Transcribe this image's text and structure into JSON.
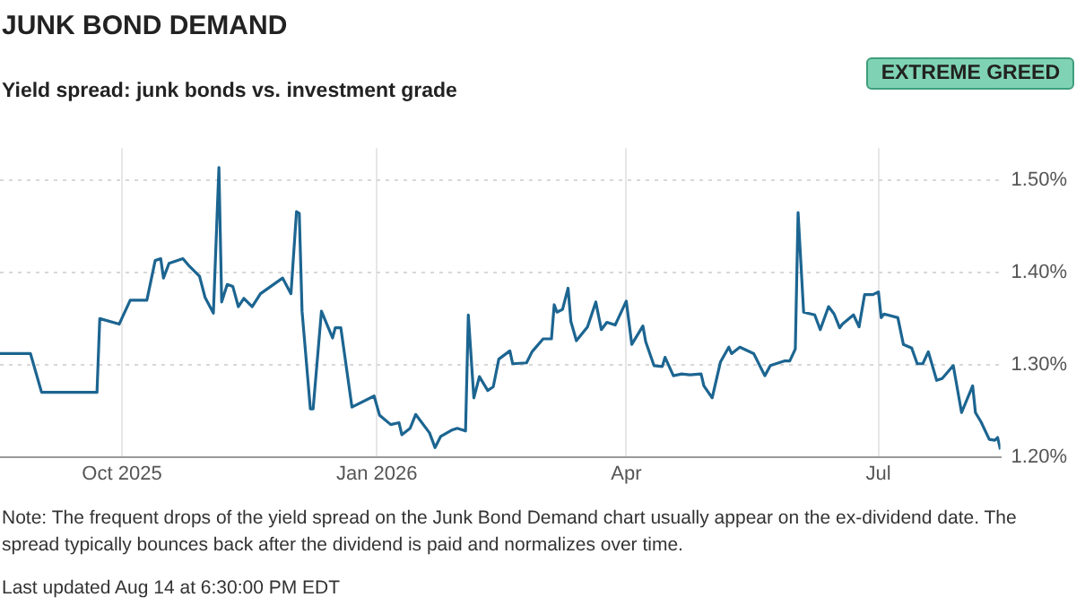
{
  "chart_data": {
    "type": "line",
    "title": "JUNK BOND DEMAND",
    "subtitle": "Yield spread: junk bonds vs. investment grade",
    "annotations": [
      "EXTREME GREED",
      "Note: The frequent drops of the yield spread on the Junk Bond Demand chart usually appear on the ex-dividend date. The spread typically bounces back after the dividend is paid and normalizes over time.",
      "Last updated Aug 14 at 6:30:00 PM EDT"
    ],
    "x": [
      "2025-08-18",
      "2025-08-29",
      "2025-09-02",
      "2025-09-22",
      "2025-09-23",
      "2025-09-30",
      "2025-10-04",
      "2025-10-10",
      "2025-10-13",
      "2025-10-15",
      "2025-10-16",
      "2025-10-18",
      "2025-10-23",
      "2025-10-25",
      "2025-10-29",
      "2025-10-31",
      "2025-11-03",
      "2025-11-05",
      "2025-11-06",
      "2025-11-08",
      "2025-11-10",
      "2025-11-12",
      "2025-11-14",
      "2025-11-17",
      "2025-11-20",
      "2025-11-28",
      "2025-12-01",
      "2025-12-03",
      "2025-12-04",
      "2025-12-05",
      "2025-12-08",
      "2025-12-09",
      "2025-12-12",
      "2025-12-16",
      "2025-12-17",
      "2025-12-19",
      "2025-12-23",
      "2025-12-31",
      "2026-01-02",
      "2026-01-06",
      "2026-01-09",
      "2026-01-10",
      "2026-01-13",
      "2026-01-15",
      "2026-01-20",
      "2026-01-22",
      "2026-01-24",
      "2026-01-28",
      "2026-01-30",
      "2026-02-02",
      "2026-02-03",
      "2026-02-05",
      "2026-02-07",
      "2026-02-10",
      "2026-02-12",
      "2026-02-14",
      "2026-02-18",
      "2026-02-19",
      "2026-02-24",
      "2026-02-26",
      "2026-03-02",
      "2026-03-05",
      "2026-03-06",
      "2026-03-07",
      "2026-03-09",
      "2026-03-11",
      "2026-03-12",
      "2026-03-14",
      "2026-03-18",
      "2026-03-21",
      "2026-03-23",
      "2026-03-25",
      "2026-03-28",
      "2026-04-01",
      "2026-04-03",
      "2026-04-07",
      "2026-04-08",
      "2026-04-11",
      "2026-04-14",
      "2026-04-15",
      "2026-04-18",
      "2026-04-21",
      "2026-04-24",
      "2026-04-28",
      "2026-04-29",
      "2026-05-02",
      "2026-05-05",
      "2026-05-08",
      "2026-05-09",
      "2026-05-12",
      "2026-05-17",
      "2026-05-21",
      "2026-05-23",
      "2026-05-28",
      "2026-05-30",
      "2026-06-01",
      "2026-06-02",
      "2026-06-04",
      "2026-06-08",
      "2026-06-10",
      "2026-06-13",
      "2026-06-15",
      "2026-06-17",
      "2026-06-18",
      "2026-06-22",
      "2026-06-24",
      "2026-06-26",
      "2026-06-29",
      "2026-07-01",
      "2026-07-02",
      "2026-07-03",
      "2026-07-08",
      "2026-07-10",
      "2026-07-13",
      "2026-07-15",
      "2026-07-17",
      "2026-07-19",
      "2026-07-22",
      "2026-07-24",
      "2026-07-28",
      "2026-07-31",
      "2026-08-04",
      "2026-08-05",
      "2026-08-07",
      "2026-08-10",
      "2026-08-12",
      "2026-08-13",
      "2026-08-14"
    ],
    "series": [
      {
        "color": "#1c6591",
        "values": [
          1.312,
          1.312,
          1.27,
          1.27,
          1.35,
          1.344,
          1.37,
          1.37,
          1.413,
          1.415,
          1.394,
          1.41,
          1.415,
          1.408,
          1.396,
          1.373,
          1.356,
          1.514,
          1.368,
          1.387,
          1.385,
          1.363,
          1.372,
          1.363,
          1.377,
          1.394,
          1.377,
          1.466,
          1.464,
          1.358,
          1.252,
          1.252,
          1.358,
          1.329,
          1.34,
          1.34,
          1.254,
          1.266,
          1.245,
          1.235,
          1.237,
          1.224,
          1.231,
          1.246,
          1.226,
          1.21,
          1.222,
          1.229,
          1.231,
          1.228,
          1.354,
          1.264,
          1.287,
          1.272,
          1.276,
          1.306,
          1.315,
          1.301,
          1.302,
          1.314,
          1.328,
          1.328,
          1.365,
          1.357,
          1.36,
          1.383,
          1.347,
          1.326,
          1.341,
          1.368,
          1.338,
          1.346,
          1.343,
          1.369,
          1.322,
          1.342,
          1.325,
          1.299,
          1.298,
          1.308,
          1.288,
          1.29,
          1.289,
          1.29,
          1.277,
          1.264,
          1.303,
          1.319,
          1.312,
          1.319,
          1.312,
          1.288,
          1.299,
          1.304,
          1.304,
          1.317,
          1.465,
          1.357,
          1.354,
          1.338,
          1.363,
          1.355,
          1.34,
          1.344,
          1.354,
          1.341,
          1.376,
          1.376,
          1.379,
          1.351,
          1.355,
          1.351,
          1.322,
          1.318,
          1.301,
          1.301,
          1.314,
          1.283,
          1.285,
          1.299,
          1.248,
          1.277,
          1.248,
          1.238,
          1.219,
          1.218,
          1.221,
          1.208
        ]
      }
    ],
    "xlim": [
      "2025-08-18",
      "2026-08-14"
    ],
    "xticks": [
      {
        "value": "2025-10-01",
        "label": "Oct 2025"
      },
      {
        "value": "2026-01-01",
        "label": "Jan 2026"
      },
      {
        "value": "2026-04-01",
        "label": "Apr"
      },
      {
        "value": "2026-07-01",
        "label": "Jul"
      }
    ],
    "ylim": [
      1.2,
      1.535
    ],
    "yticks": [
      {
        "value": 1.2,
        "label": "1.20%"
      },
      {
        "value": 1.3,
        "label": "1.30%"
      },
      {
        "value": 1.4,
        "label": "1.40%"
      },
      {
        "value": 1.5,
        "label": "1.50%"
      }
    ],
    "grid": true
  }
}
